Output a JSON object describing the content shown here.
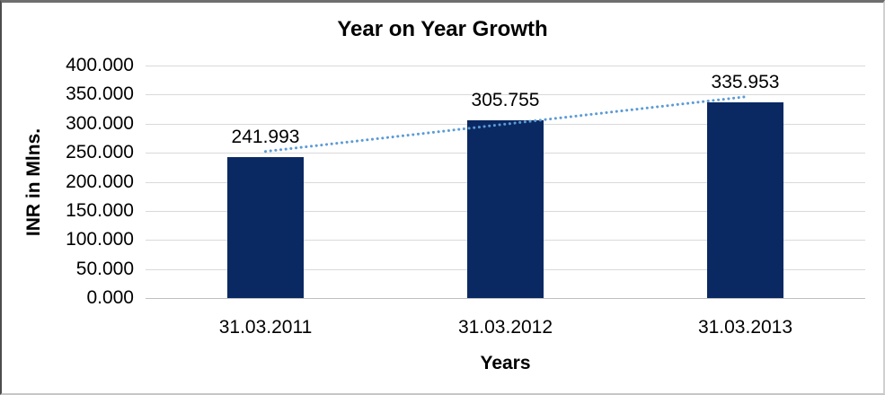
{
  "chart_data": {
    "type": "bar",
    "title": "Year on Year Growth",
    "xlabel": "Years",
    "ylabel": "INR in Mlns.",
    "categories": [
      "31.03.2011",
      "31.03.2012",
      "31.03.2013"
    ],
    "values": [
      241.993,
      305.755,
      335.953
    ],
    "value_labels": [
      "241.993",
      "305.755",
      "335.953"
    ],
    "ylim": [
      0,
      400
    ],
    "ytick_step": 50,
    "ytick_labels": [
      "400.000",
      "350.000",
      "300.000",
      "250.000",
      "200.000",
      "150.000",
      "100.000",
      "50.000",
      "0.000"
    ],
    "grid": "horizontal",
    "legend": "none",
    "bar_color": "#0a2963",
    "gridline_color": "#d9d9d9",
    "trendline": {
      "type": "linear",
      "style": "dotted",
      "color": "#5b9bd5"
    }
  }
}
